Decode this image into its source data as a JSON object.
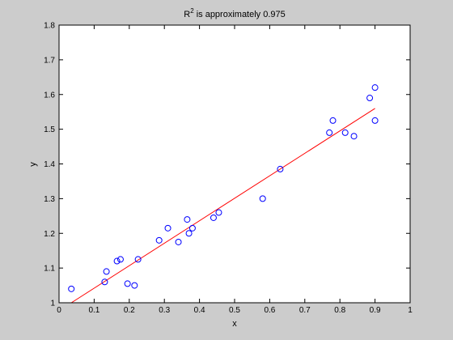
{
  "colors": {
    "figure_background": "#cccccc",
    "axes_background": "#ffffff",
    "axes_color": "#000000",
    "marker_color": "#0000ff",
    "fit_line_color": "#ff0000"
  },
  "chart_data": {
    "type": "scatter",
    "title_prefix": "R",
    "title_superscript": "2",
    "title_suffix": " is approximately 0.975",
    "xlabel": "x",
    "ylabel": "y",
    "xlim": [
      0,
      1
    ],
    "ylim": [
      1,
      1.8
    ],
    "xticks": [
      0,
      0.1,
      0.2,
      0.3,
      0.4,
      0.5,
      0.6,
      0.7,
      0.8,
      0.9,
      1
    ],
    "xtick_labels": [
      "0",
      "0.1",
      "0.2",
      "0.3",
      "0.4",
      "0.5",
      "0.6",
      "0.7",
      "0.8",
      "0.9",
      "1"
    ],
    "yticks": [
      1,
      1.1,
      1.2,
      1.3,
      1.4,
      1.5,
      1.6,
      1.7,
      1.8
    ],
    "ytick_labels": [
      "1",
      "1.1",
      "1.2",
      "1.3",
      "1.4",
      "1.5",
      "1.6",
      "1.7",
      "1.8"
    ],
    "grid": false,
    "series": [
      {
        "kind": "markers",
        "marker": "circle",
        "x": [
          0.035,
          0.13,
          0.135,
          0.165,
          0.175,
          0.195,
          0.215,
          0.225,
          0.285,
          0.31,
          0.34,
          0.365,
          0.37,
          0.38,
          0.44,
          0.455,
          0.58,
          0.63,
          0.77,
          0.78,
          0.815,
          0.84,
          0.885,
          0.9,
          0.9
        ],
        "y": [
          1.04,
          1.06,
          1.09,
          1.12,
          1.125,
          1.055,
          1.05,
          1.125,
          1.18,
          1.215,
          1.175,
          1.24,
          1.2,
          1.215,
          1.245,
          1.26,
          1.3,
          1.385,
          1.49,
          1.525,
          1.49,
          1.48,
          1.59,
          1.525,
          1.62
        ]
      },
      {
        "kind": "line",
        "x": [
          0.035,
          0.9
        ],
        "y": [
          1.0,
          1.56
        ]
      }
    ]
  }
}
